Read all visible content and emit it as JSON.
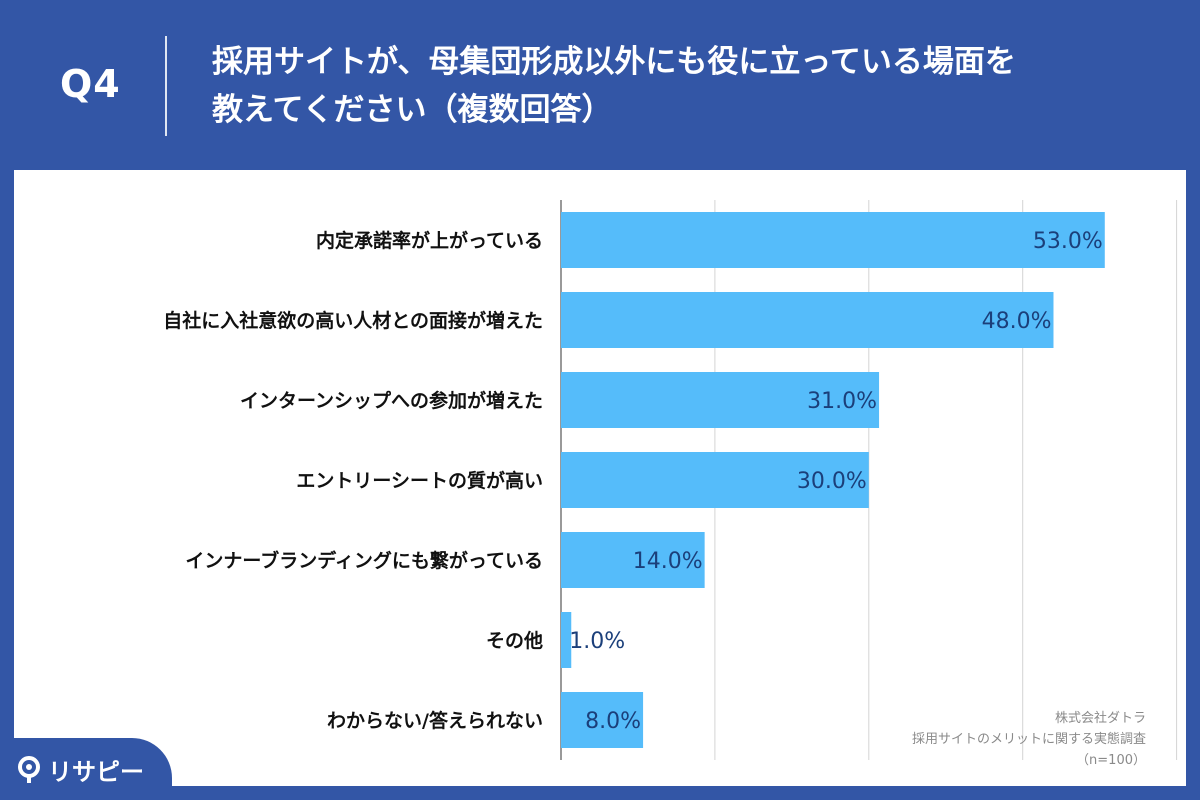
{
  "header": {
    "question": "Q4",
    "title_line1": "採用サイトが、母集団形成以外にも役に立っている場面を",
    "title_line2": "教えてください（複数回答）"
  },
  "chart_data": {
    "type": "bar",
    "orientation": "horizontal",
    "categories": [
      "内定承諾率が上がっている",
      "自社に入社意欲の高い人材との面接が増えた",
      "インターンシップへの参加が増えた",
      "エントリーシートの質が高い",
      "インナーブランディングにも繋がっている",
      "その他",
      "わからない/答えられない"
    ],
    "values": [
      53.0,
      48.0,
      31.0,
      30.0,
      14.0,
      1.0,
      8.0
    ],
    "value_labels": [
      "53.0%",
      "48.0%",
      "31.0%",
      "30.0%",
      "14.0%",
      "1.0%",
      "8.0%"
    ],
    "xlim": [
      0,
      60
    ],
    "grid": true,
    "bar_color": "#55bcfa",
    "value_label_color": "#1b3f7a"
  },
  "source": {
    "company": "株式会社ダトラ",
    "survey": "採用サイトのメリットに関する実態調査",
    "sample": "（n=100）"
  },
  "brand": {
    "logo_text": "リサピー",
    "logo_icon": "pin-icon"
  },
  "colors": {
    "background": "#3356a6",
    "panel": "#ffffff",
    "bar": "#55bcfa"
  }
}
